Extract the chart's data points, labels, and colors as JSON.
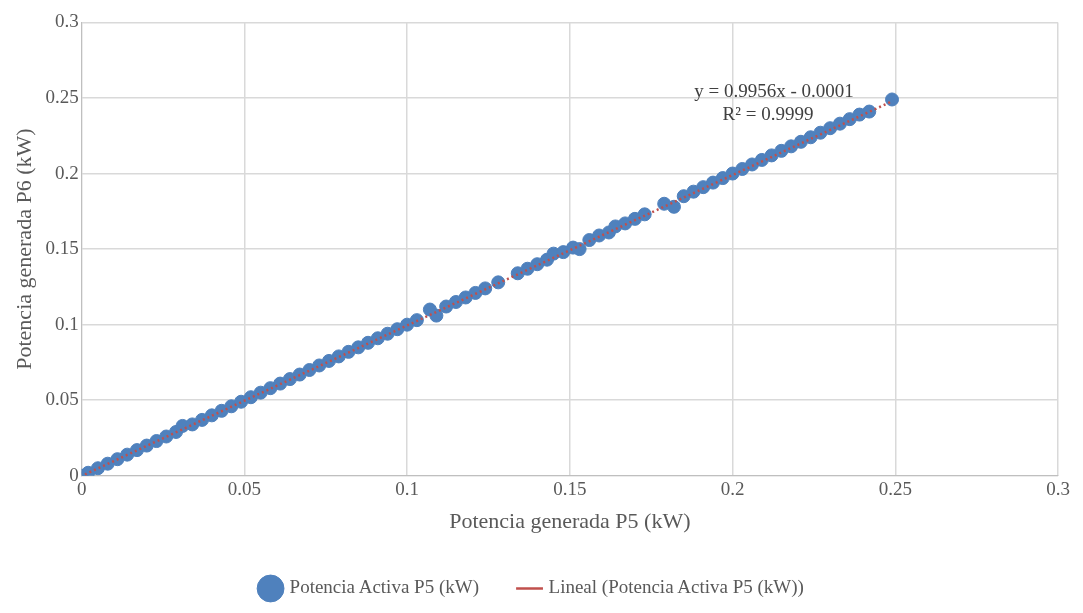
{
  "chart_data": {
    "type": "scatter",
    "xlabel": "Potencia generada P5 (kW)",
    "ylabel": "Potencia generada P6 (kW)",
    "xlim": [
      0,
      0.3
    ],
    "xticks": [
      0,
      0.05,
      0.1,
      0.15,
      0.2,
      0.25,
      0.3
    ],
    "ylim": [
      0,
      0.3
    ],
    "yticks": [
      0,
      0.05,
      0.1,
      0.15,
      0.2,
      0.25,
      0.3
    ],
    "grid": true,
    "legend": "bottom",
    "annotations": [
      "y = 0.9956x - 0.0001",
      "R² = 0.9999"
    ],
    "series": [
      {
        "name": "Potencia Activa P5 (kW)",
        "marker": "circle",
        "color": "#4f81bd",
        "x": [
          0,
          0.002,
          0.005,
          0.008,
          0.011,
          0.014,
          0.017,
          0.02,
          0.023,
          0.026,
          0.029,
          0.031,
          0.034,
          0.037,
          0.04,
          0.043,
          0.046,
          0.049,
          0.052,
          0.055,
          0.058,
          0.061,
          0.064,
          0.067,
          0.07,
          0.073,
          0.076,
          0.079,
          0.082,
          0.085,
          0.088,
          0.091,
          0.094,
          0.097,
          0.1,
          0.103,
          0.107,
          0.109,
          0.112,
          0.115,
          0.118,
          0.121,
          0.124,
          0.128,
          0.134,
          0.137,
          0.14,
          0.143,
          0.145,
          0.148,
          0.151,
          0.153,
          0.156,
          0.159,
          0.162,
          0.164,
          0.167,
          0.17,
          0.173,
          0.179,
          0.182,
          0.185,
          0.188,
          0.191,
          0.194,
          0.197,
          0.2,
          0.203,
          0.206,
          0.209,
          0.212,
          0.215,
          0.218,
          0.221,
          0.224,
          0.227,
          0.23,
          0.233,
          0.236,
          0.239,
          0.242,
          0.249
        ],
        "values": [
          0,
          0.002,
          0.005,
          0.008,
          0.011,
          0.014,
          0.017,
          0.02,
          0.023,
          0.026,
          0.029,
          0.033,
          0.034,
          0.037,
          0.04,
          0.043,
          0.046,
          0.049,
          0.052,
          0.055,
          0.058,
          0.061,
          0.064,
          0.067,
          0.07,
          0.073,
          0.076,
          0.079,
          0.082,
          0.085,
          0.088,
          0.091,
          0.094,
          0.097,
          0.1,
          0.103,
          0.11,
          0.106,
          0.112,
          0.115,
          0.118,
          0.121,
          0.124,
          0.128,
          0.134,
          0.137,
          0.14,
          0.143,
          0.147,
          0.148,
          0.151,
          0.15,
          0.156,
          0.159,
          0.161,
          0.165,
          0.167,
          0.17,
          0.173,
          0.18,
          0.178,
          0.185,
          0.188,
          0.191,
          0.194,
          0.197,
          0.2,
          0.203,
          0.206,
          0.209,
          0.212,
          0.215,
          0.218,
          0.221,
          0.224,
          0.227,
          0.23,
          0.233,
          0.236,
          0.239,
          0.241,
          0.249
        ]
      },
      {
        "name": "Lineal (Potencia Activa P5 (kW))",
        "type": "line",
        "color": "#c0504d",
        "line_style": "dotted",
        "x": [
          0.001,
          0.249
        ],
        "values": [
          0.0009,
          0.2478
        ]
      }
    ]
  }
}
